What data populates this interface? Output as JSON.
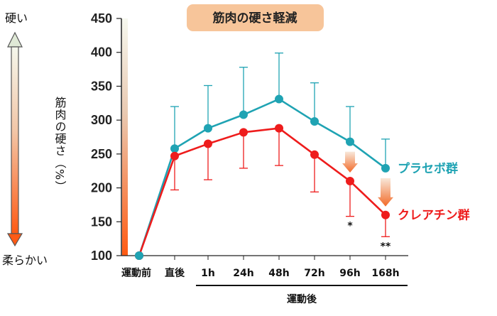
{
  "chart_data": {
    "type": "line",
    "title": "筋肉の硬さ軽減",
    "ylabel": "筋肉の硬さ（%）",
    "ylim": [
      100,
      450
    ],
    "yticks": [
      100,
      150,
      200,
      250,
      300,
      350,
      400,
      450
    ],
    "scale_top_label": "硬い",
    "scale_bottom_label": "柔らかい",
    "categories": [
      "運動前",
      "直後",
      "1h",
      "24h",
      "48h",
      "72h",
      "96h",
      "168h"
    ],
    "xgroup_label": "運動後",
    "series": [
      {
        "name": "プラセボ群",
        "color": "#1fa3b3",
        "values": [
          100,
          258,
          288,
          308,
          331,
          298,
          268,
          229
        ],
        "error": [
          0,
          62,
          63,
          70,
          68,
          57,
          52,
          43
        ],
        "error_dir": "up"
      },
      {
        "name": "クレアチン群",
        "color": "#ee1c1c",
        "values": [
          100,
          247,
          265,
          282,
          288,
          249,
          210,
          160
        ],
        "error": [
          0,
          50,
          53,
          53,
          55,
          55,
          52,
          32
        ],
        "error_dir": "down"
      }
    ],
    "annotations": [
      {
        "category": "96h",
        "text": "*"
      },
      {
        "category": "168h",
        "text": "**"
      }
    ],
    "arrow_categories": [
      "96h",
      "168h"
    ]
  }
}
